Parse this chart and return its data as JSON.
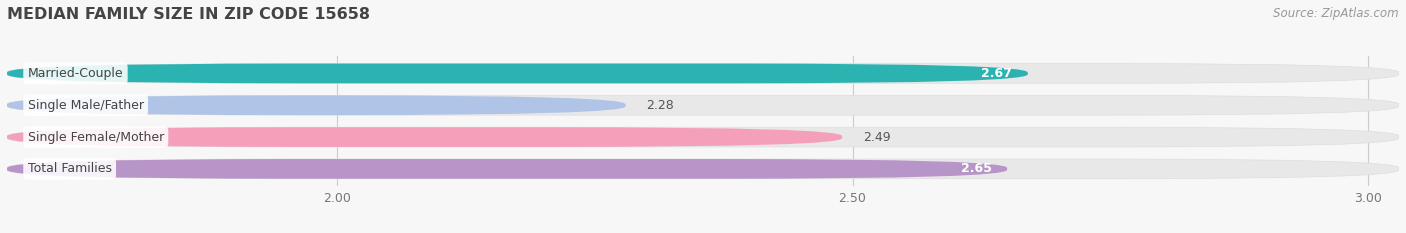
{
  "title": "MEDIAN FAMILY SIZE IN ZIP CODE 15658",
  "source": "Source: ZipAtlas.com",
  "categories": [
    "Married-Couple",
    "Single Male/Father",
    "Single Female/Mother",
    "Total Families"
  ],
  "values": [
    2.67,
    2.28,
    2.49,
    2.65
  ],
  "bar_colors": [
    "#2ab3b0",
    "#b0c4e8",
    "#f5a0bb",
    "#b895c8"
  ],
  "bar_bg_color": "#e8e8e8",
  "data_min": 2.0,
  "data_max": 3.0,
  "xticks": [
    2.0,
    2.5,
    3.0
  ],
  "bar_height": 0.62,
  "fig_bg_color": "#f7f7f7",
  "title_fontsize": 11.5,
  "label_fontsize": 9.0,
  "value_fontsize": 9.0,
  "source_fontsize": 8.5,
  "value_inside_color": "white",
  "value_outside_color": "#555555",
  "label_text_color": "#444444"
}
